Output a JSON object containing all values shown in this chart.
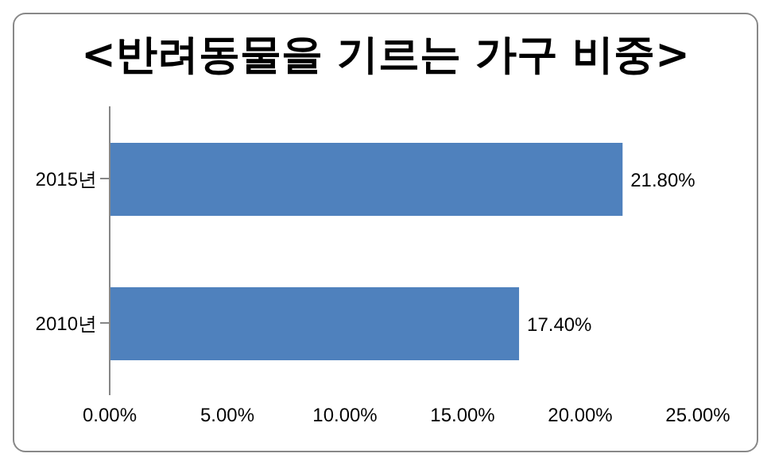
{
  "chart_data": {
    "type": "bar",
    "orientation": "horizontal",
    "title": "<반려동물을 기르는 가구 비중>",
    "categories": [
      "2015년",
      "2010년"
    ],
    "values": [
      21.8,
      17.4
    ],
    "color": "#4f81bd",
    "value_labels": [
      "21.80%",
      "17.40%"
    ],
    "xlim": [
      0,
      25
    ],
    "xticks": [
      {
        "value": 0,
        "label": "0.00%"
      },
      {
        "value": 5,
        "label": "5.00%"
      },
      {
        "value": 10,
        "label": "10.00%"
      },
      {
        "value": 15,
        "label": "15.00%"
      },
      {
        "value": 20,
        "label": "20.00%"
      },
      {
        "value": 25,
        "label": "25.00%"
      }
    ],
    "grid": false,
    "legend": false
  }
}
